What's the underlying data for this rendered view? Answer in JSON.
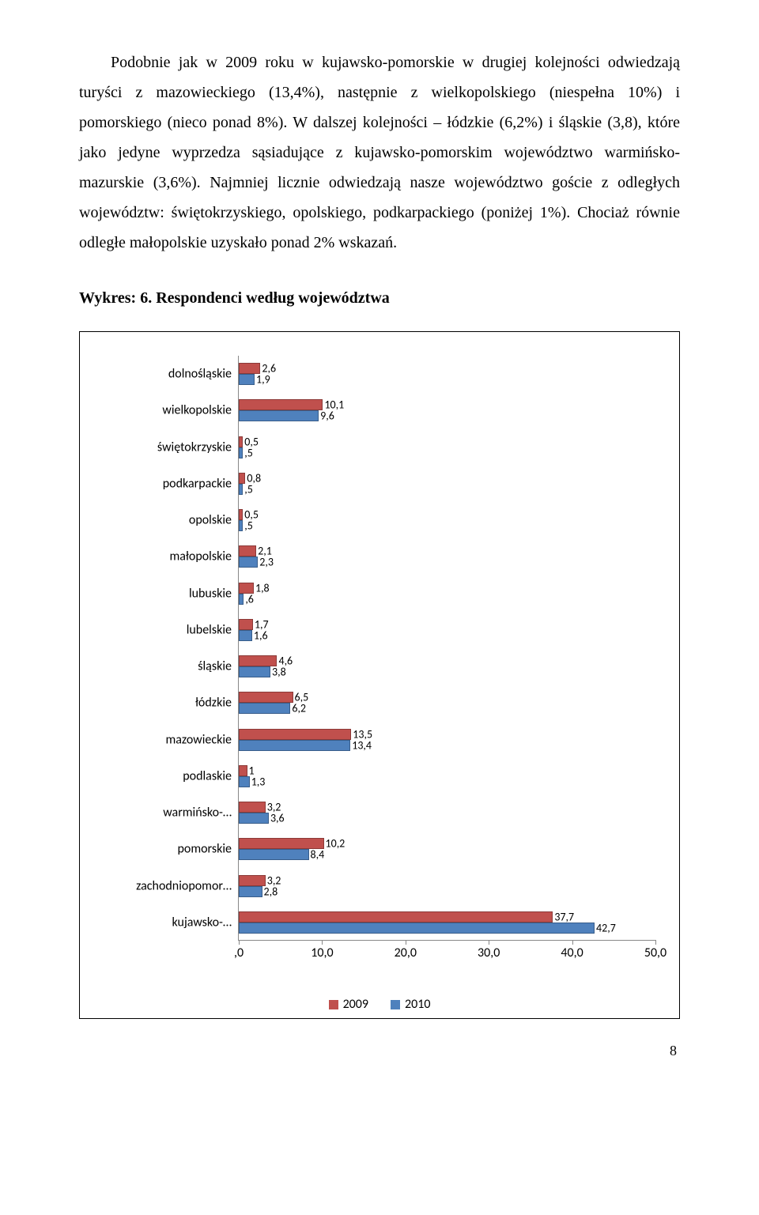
{
  "paragraph": "Podobnie jak w 2009 roku w kujawsko-pomorskie w drugiej kolejności odwiedzają turyści z mazowieckiego (13,4%), następnie z wielkopolskiego (niespełna 10%) i pomorskiego (nieco ponad 8%). W dalszej kolejności – łódzkie (6,2%) i śląskie (3,8), które jako jedyne wyprzedza sąsiadujące z kujawsko-pomorskim województwo warmińsko-mazurskie (3,6%). Najmniej licznie odwiedzają nasze województwo goście z odległych województw: świętokrzyskiego, opolskiego, podkarpackiego (poniżej 1%). Chociaż równie odległe małopolskie uzyskało ponad 2% wskazań.",
  "chart_title": "Wykres: 6. Respondenci według województwa",
  "page_number": "8",
  "chart": {
    "type": "bar",
    "orientation": "horizontal",
    "xlim": [
      0,
      50
    ],
    "xtick_step": 10,
    "xtick_labels": [
      ",0",
      "10,0",
      "20,0",
      "30,0",
      "40,0",
      "50,0"
    ],
    "series_colors": {
      "2009": "#c0504d",
      "2010": "#4f81bd"
    },
    "series_borders": {
      "2009": "#8b3a38",
      "2010": "#385d8a"
    },
    "categories": [
      {
        "label": "dolnośląskie",
        "v2009": 2.6,
        "v2010": 1.9,
        "l2009": "2,6",
        "l2010": "1,9"
      },
      {
        "label": "wielkopolskie",
        "v2009": 10.1,
        "v2010": 9.6,
        "l2009": "10,1",
        "l2010": "9,6"
      },
      {
        "label": "świętokrzyskie",
        "v2009": 0.5,
        "v2010": 0.5,
        "l2009": "0,5",
        "l2010": ",5"
      },
      {
        "label": "podkarpackie",
        "v2009": 0.8,
        "v2010": 0.5,
        "l2009": "0,8",
        "l2010": ",5"
      },
      {
        "label": "opolskie",
        "v2009": 0.5,
        "v2010": 0.5,
        "l2009": "0,5",
        "l2010": ",5"
      },
      {
        "label": "małopolskie",
        "v2009": 2.1,
        "v2010": 2.3,
        "l2009": "2,1",
        "l2010": "2,3"
      },
      {
        "label": "lubuskie",
        "v2009": 1.8,
        "v2010": 0.6,
        "l2009": "1,8",
        "l2010": ",6"
      },
      {
        "label": "lubelskie",
        "v2009": 1.7,
        "v2010": 1.6,
        "l2009": "1,7",
        "l2010": "1,6"
      },
      {
        "label": "śląskie",
        "v2009": 4.6,
        "v2010": 3.8,
        "l2009": "4,6",
        "l2010": "3,8"
      },
      {
        "label": "łódzkie",
        "v2009": 6.5,
        "v2010": 6.2,
        "l2009": "6,5",
        "l2010": "6,2"
      },
      {
        "label": "mazowieckie",
        "v2009": 13.5,
        "v2010": 13.4,
        "l2009": "13,5",
        "l2010": "13,4"
      },
      {
        "label": "podlaskie",
        "v2009": 1.0,
        "v2010": 1.3,
        "l2009": "1",
        "l2010": "1,3"
      },
      {
        "label": "warmińsko-…",
        "v2009": 3.2,
        "v2010": 3.6,
        "l2009": "3,2",
        "l2010": "3,6"
      },
      {
        "label": "pomorskie",
        "v2009": 10.2,
        "v2010": 8.4,
        "l2009": "10,2",
        "l2010": "8,4"
      },
      {
        "label": "zachodniopomor…",
        "v2009": 3.2,
        "v2010": 2.8,
        "l2009": "3,2",
        "l2010": "2,8"
      },
      {
        "label": "kujawsko-…",
        "v2009": 37.7,
        "v2010": 42.7,
        "l2009": "37,7",
        "l2010": "42,7"
      }
    ],
    "legend": [
      {
        "label": "2009",
        "color": "#c0504d"
      },
      {
        "label": "2010",
        "color": "#4f81bd"
      }
    ]
  }
}
